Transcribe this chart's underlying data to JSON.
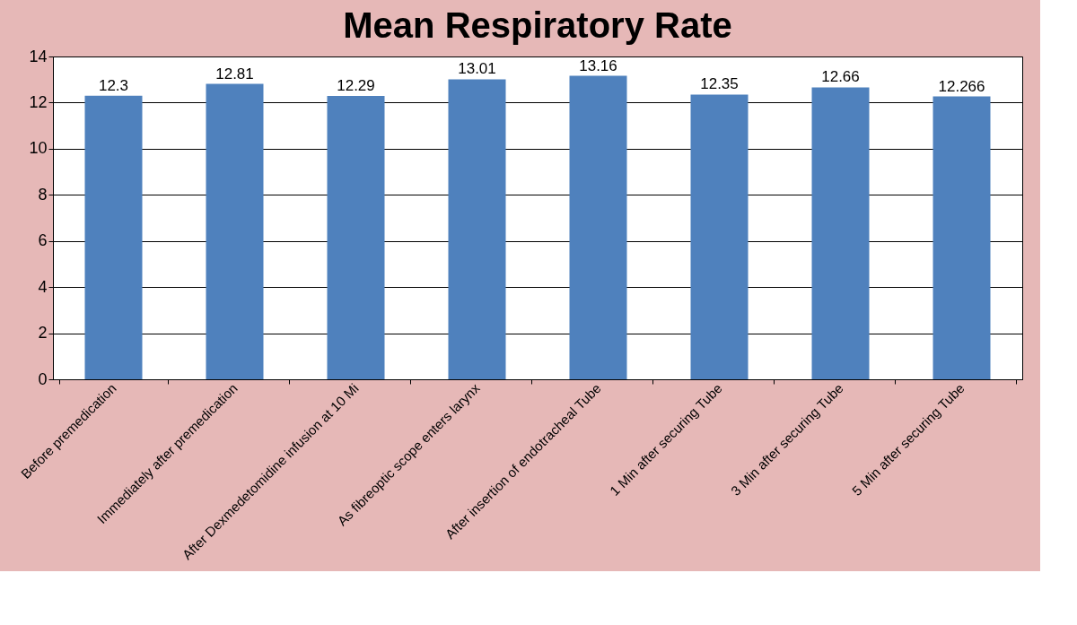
{
  "chart_data": {
    "type": "bar",
    "title": "Mean Respiratory Rate",
    "categories": [
      "Before premedication",
      "Immediately after premedication",
      "After Dexmedetomidine infusion at 10 Mi",
      "As fibreoptic scope enters larynx",
      "After insertion of endotracheal Tube",
      "1 Min after securing Tube",
      "3 Min after securing Tube",
      "5 Min after securing  Tube"
    ],
    "values": [
      12.3,
      12.81,
      12.29,
      13.01,
      13.16,
      12.35,
      12.66,
      12.266
    ],
    "color": "#4f81bd",
    "ylim": [
      0,
      14
    ],
    "yticks": [
      0,
      2,
      4,
      6,
      8,
      10,
      12,
      14
    ],
    "grid": "y",
    "data_labels": true
  }
}
